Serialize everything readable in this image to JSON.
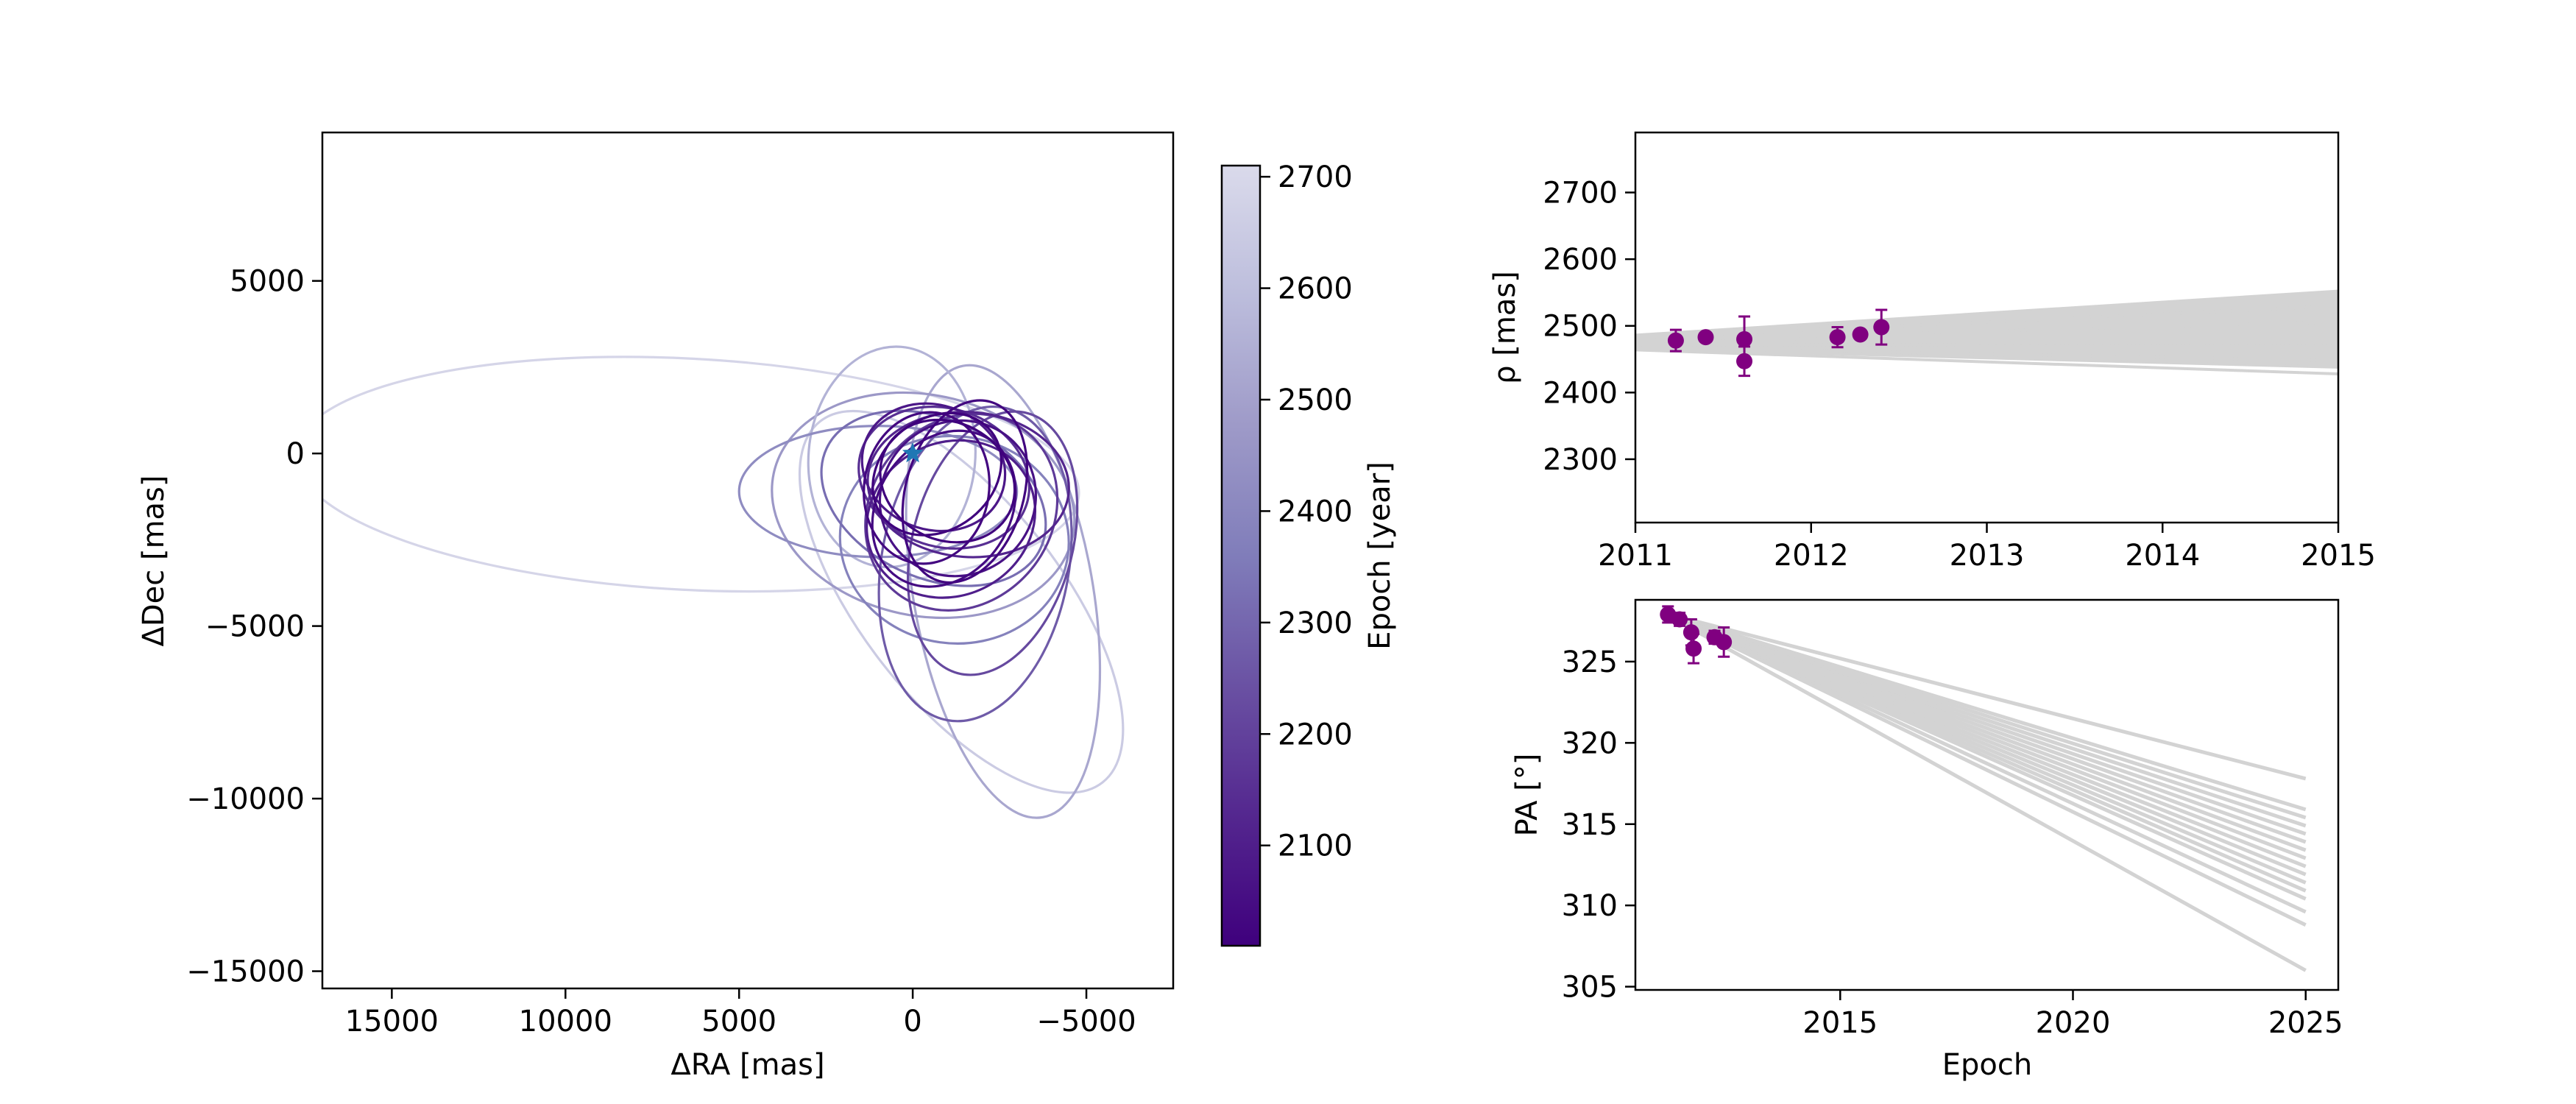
{
  "chart_data": [
    {
      "type": "line",
      "name": "orbit-plot",
      "xlabel": "ΔRA [mas]",
      "ylabel": "ΔDec [mas]",
      "xlim": [
        17000,
        -7500
      ],
      "ylim": [
        -15500,
        9300
      ],
      "x_ticks": [
        15000,
        10000,
        5000,
        0,
        -5000
      ],
      "x_tick_labels": [
        "15000",
        "10000",
        "5000",
        "0",
        "−5000"
      ],
      "y_ticks": [
        5000,
        0,
        -5000,
        -10000,
        -15000
      ],
      "y_tick_labels": [
        "5000",
        "0",
        "−5000",
        "−10000",
        "−15000"
      ],
      "grid": false,
      "primary_star": {
        "x": 0,
        "y": 0,
        "marker": "star",
        "color": "#1f77b4"
      },
      "orbits": [
        {
          "epoch": 2690,
          "cx": 6500,
          "cy": -600,
          "a": 11300,
          "b": 3350,
          "rot": 3
        },
        {
          "epoch": 2650,
          "cx": -1400,
          "cy": -4300,
          "a": 6600,
          "b": 2900,
          "rot": 52
        },
        {
          "epoch": 2520,
          "cx": -2600,
          "cy": -4000,
          "a": 6600,
          "b": 2600,
          "rot": 80
        },
        {
          "epoch": 2470,
          "cx": -300,
          "cy": -1500,
          "a": 4400,
          "b": 3200,
          "rot": 12
        },
        {
          "epoch": 2560,
          "cx": 600,
          "cy": -100,
          "a": 2400,
          "b": 3200,
          "rot": 5
        },
        {
          "epoch": 2420,
          "cx": 1000,
          "cy": -1100,
          "a": 4000,
          "b": 1900,
          "rot": 0
        },
        {
          "epoch": 2380,
          "cx": -1200,
          "cy": -2500,
          "a": 3300,
          "b": 3000,
          "rot": 8
        },
        {
          "epoch": 2320,
          "cx": -600,
          "cy": -1300,
          "a": 3400,
          "b": 2300,
          "rot": 25
        },
        {
          "epoch": 2270,
          "cx": -1800,
          "cy": -3200,
          "a": 2700,
          "b": 4600,
          "rot": 10
        },
        {
          "epoch": 2220,
          "cx": -2300,
          "cy": -2600,
          "a": 2300,
          "b": 3900,
          "rot": 15
        },
        {
          "epoch": 2180,
          "cx": -1400,
          "cy": -1700,
          "a": 2600,
          "b": 3000,
          "rot": 40
        },
        {
          "epoch": 2150,
          "cx": -900,
          "cy": -700,
          "a": 2500,
          "b": 2000,
          "rot": 18
        },
        {
          "epoch": 2120,
          "cx": -1600,
          "cy": -900,
          "a": 2900,
          "b": 2100,
          "rot": 4
        },
        {
          "epoch": 2100,
          "cx": -1100,
          "cy": -1900,
          "a": 2200,
          "b": 2500,
          "rot": 62
        },
        {
          "epoch": 2080,
          "cx": -600,
          "cy": -400,
          "a": 2100,
          "b": 1800,
          "rot": 22
        },
        {
          "epoch": 2060,
          "cx": -1300,
          "cy": -1300,
          "a": 2200,
          "b": 2300,
          "rot": 47
        },
        {
          "epoch": 2040,
          "cx": -900,
          "cy": -1600,
          "a": 1900,
          "b": 2400,
          "rot": 34
        },
        {
          "epoch": 2030,
          "cx": -400,
          "cy": -1000,
          "a": 1800,
          "b": 2200,
          "rot": 8
        },
        {
          "epoch": 2020,
          "cx": -1500,
          "cy": -1100,
          "a": 1700,
          "b": 2700,
          "rot": 16
        },
        {
          "epoch": 2010,
          "cx": -700,
          "cy": -600,
          "a": 1600,
          "b": 2000,
          "rot": 52
        },
        {
          "epoch": 2010,
          "cx": -1000,
          "cy": -800,
          "a": 2000,
          "b": 1700,
          "rot": 28
        }
      ]
    },
    {
      "type": "colorbar",
      "name": "epoch-colorbar",
      "label": "Epoch [year]",
      "range": [
        2010,
        2710
      ],
      "ticks": [
        2100,
        2200,
        2300,
        2400,
        2500,
        2600,
        2700
      ],
      "tick_labels": [
        "2100",
        "2200",
        "2300",
        "2400",
        "2500",
        "2600",
        "2700"
      ],
      "colormap": [
        "#3f007d",
        "#54278f",
        "#6a51a3",
        "#807dba",
        "#9e9ac8",
        "#bcbddc",
        "#dadaeb"
      ]
    },
    {
      "type": "line",
      "name": "separation-plot",
      "xlabel": "",
      "ylabel": "ρ [mas]",
      "xlim": [
        2011,
        2015
      ],
      "ylim": [
        2205,
        2790
      ],
      "x_ticks": [
        2011,
        2012,
        2013,
        2014,
        2015
      ],
      "x_tick_labels": [
        "2011",
        "2012",
        "2013",
        "2014",
        "2015"
      ],
      "y_ticks": [
        2300,
        2400,
        2500,
        2600,
        2700
      ],
      "y_tick_labels": [
        "2300",
        "2400",
        "2500",
        "2600",
        "2700"
      ],
      "grid": false,
      "model_color": "#d3d3d3",
      "data_color": "#800080",
      "model_tracks": [
        [
          [
            2011,
            2464
          ],
          [
            2015,
            2428
          ]
        ],
        [
          [
            2011,
            2466
          ],
          [
            2015,
            2438
          ]
        ],
        [
          [
            2011,
            2468
          ],
          [
            2015,
            2448
          ]
        ],
        [
          [
            2011,
            2470
          ],
          [
            2015,
            2460
          ]
        ],
        [
          [
            2011,
            2472
          ],
          [
            2015,
            2470
          ]
        ],
        [
          [
            2011,
            2474
          ],
          [
            2015,
            2482
          ]
        ],
        [
          [
            2011,
            2476
          ],
          [
            2015,
            2494
          ]
        ],
        [
          [
            2011,
            2478
          ],
          [
            2015,
            2506
          ]
        ],
        [
          [
            2011,
            2480
          ],
          [
            2015,
            2518
          ]
        ],
        [
          [
            2011,
            2482
          ],
          [
            2015,
            2530
          ]
        ],
        [
          [
            2011,
            2484
          ],
          [
            2015,
            2542
          ]
        ],
        [
          [
            2011,
            2486
          ],
          [
            2015,
            2552
          ]
        ]
      ],
      "model_band": {
        "x": [
          2011,
          2015
        ],
        "lower": [
          2464,
          2438
        ],
        "upper": [
          2486,
          2552
        ]
      },
      "data": [
        {
          "x": 2011.23,
          "y": 2478,
          "err": 16
        },
        {
          "x": 2011.4,
          "y": 2483,
          "err": 6
        },
        {
          "x": 2011.62,
          "y": 2480,
          "err": 34
        },
        {
          "x": 2011.62,
          "y": 2447,
          "err": 22
        },
        {
          "x": 2012.15,
          "y": 2483,
          "err": 15
        },
        {
          "x": 2012.28,
          "y": 2487,
          "err": 6
        },
        {
          "x": 2012.4,
          "y": 2498,
          "err": 26
        }
      ]
    },
    {
      "type": "line",
      "name": "position-angle-plot",
      "xlabel": "Epoch",
      "ylabel": "PA [°]",
      "xlim": [
        2010.6,
        2025.7
      ],
      "ylim": [
        304.8,
        328.8
      ],
      "x_ticks": [
        2015,
        2020,
        2025
      ],
      "x_tick_labels": [
        "2015",
        "2020",
        "2025"
      ],
      "y_ticks": [
        305,
        310,
        315,
        320,
        325
      ],
      "y_tick_labels": [
        "305",
        "310",
        "315",
        "320",
        "325"
      ],
      "grid": false,
      "model_color": "#d3d3d3",
      "data_color": "#800080",
      "model_tracks": [
        [
          [
            2011.2,
            328.0
          ],
          [
            2025,
            317.8
          ]
        ],
        [
          [
            2011.2,
            328.0
          ],
          [
            2025,
            315.9
          ]
        ],
        [
          [
            2011.2,
            328.0
          ],
          [
            2025,
            315.4
          ]
        ],
        [
          [
            2011.2,
            328.0
          ],
          [
            2025,
            314.9
          ]
        ],
        [
          [
            2011.2,
            328.0
          ],
          [
            2025,
            314.4
          ]
        ],
        [
          [
            2011.2,
            328.0
          ],
          [
            2025,
            313.9
          ]
        ],
        [
          [
            2011.2,
            328.0
          ],
          [
            2025,
            313.4
          ]
        ],
        [
          [
            2011.2,
            328.0
          ],
          [
            2025,
            312.9
          ]
        ],
        [
          [
            2011.2,
            328.0
          ],
          [
            2025,
            312.4
          ]
        ],
        [
          [
            2011.2,
            328.0
          ],
          [
            2025,
            311.9
          ]
        ],
        [
          [
            2011.2,
            328.0
          ],
          [
            2025,
            311.4
          ]
        ],
        [
          [
            2011.2,
            328.0
          ],
          [
            2025,
            310.9
          ]
        ],
        [
          [
            2011.2,
            328.0
          ],
          [
            2025,
            310.4
          ]
        ],
        [
          [
            2011.2,
            328.0
          ],
          [
            2025,
            309.6
          ]
        ],
        [
          [
            2011.2,
            328.0
          ],
          [
            2025,
            308.8
          ]
        ],
        [
          [
            2011.2,
            328.0
          ],
          [
            2025,
            306.0
          ]
        ]
      ],
      "data": [
        {
          "x": 2011.3,
          "y": 327.9,
          "err": 0.5
        },
        {
          "x": 2011.55,
          "y": 327.6,
          "err": 0.4
        },
        {
          "x": 2011.8,
          "y": 326.8,
          "err": 0.8
        },
        {
          "x": 2011.85,
          "y": 325.8,
          "err": 0.9
        },
        {
          "x": 2012.3,
          "y": 326.5,
          "err": 0.4
        },
        {
          "x": 2012.5,
          "y": 326.2,
          "err": 0.9
        }
      ]
    }
  ]
}
